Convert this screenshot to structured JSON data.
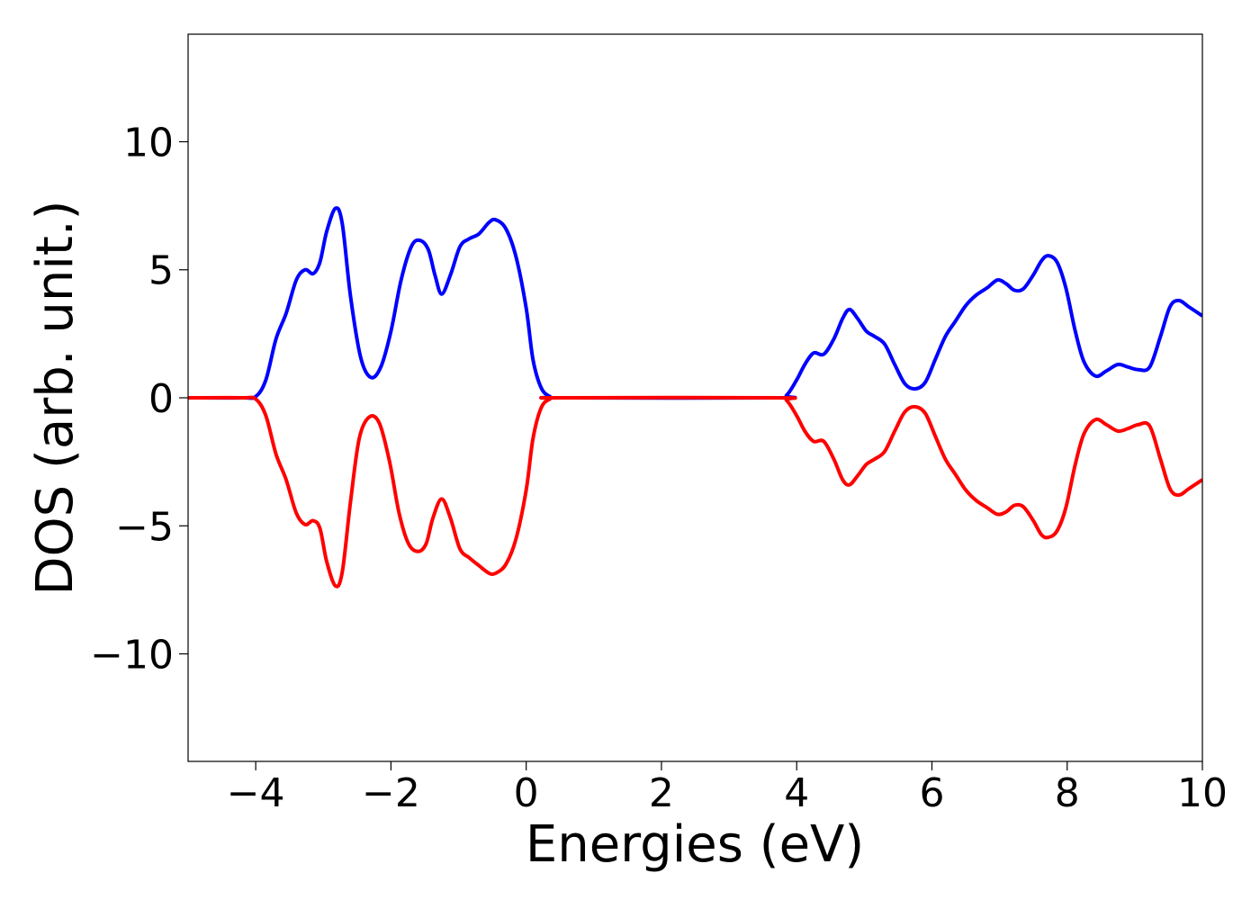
{
  "chart_data": {
    "type": "line",
    "title": "",
    "xlabel": "Energies (eV)",
    "ylabel": "DOS (arb. unit.)",
    "xlim": [
      -5,
      10
    ],
    "ylim": [
      -14.2,
      14.2
    ],
    "grid": false,
    "legend": "none",
    "x_ticks": [
      -4,
      -2,
      0,
      2,
      4,
      6,
      8,
      10
    ],
    "x_tick_labels": [
      "−4",
      "−2",
      "0",
      "2",
      "4",
      "6",
      "8",
      "10"
    ],
    "y_ticks": [
      10,
      5,
      0,
      -5,
      -10
    ],
    "y_tick_labels": [
      "10",
      "5",
      "0",
      "−5",
      "−10"
    ],
    "series": [
      {
        "color": "#0000ff",
        "points": [
          [
            -5.0,
            0.0
          ],
          [
            -4.2,
            0.0
          ],
          [
            -4.0,
            0.05
          ],
          [
            -3.85,
            0.7
          ],
          [
            -3.7,
            2.3
          ],
          [
            -3.55,
            3.3
          ],
          [
            -3.4,
            4.6
          ],
          [
            -3.27,
            5.0
          ],
          [
            -3.15,
            4.85
          ],
          [
            -3.05,
            5.3
          ],
          [
            -2.95,
            6.5
          ],
          [
            -2.82,
            7.4
          ],
          [
            -2.72,
            6.8
          ],
          [
            -2.6,
            4.0
          ],
          [
            -2.45,
            1.6
          ],
          [
            -2.3,
            0.8
          ],
          [
            -2.15,
            1.2
          ],
          [
            -2.0,
            2.6
          ],
          [
            -1.85,
            4.6
          ],
          [
            -1.7,
            5.9
          ],
          [
            -1.58,
            6.15
          ],
          [
            -1.45,
            5.8
          ],
          [
            -1.35,
            4.8
          ],
          [
            -1.25,
            4.05
          ],
          [
            -1.12,
            4.8
          ],
          [
            -0.98,
            5.9
          ],
          [
            -0.85,
            6.2
          ],
          [
            -0.7,
            6.4
          ],
          [
            -0.55,
            6.85
          ],
          [
            -0.45,
            6.95
          ],
          [
            -0.3,
            6.6
          ],
          [
            -0.15,
            5.5
          ],
          [
            0.0,
            3.5
          ],
          [
            0.1,
            1.5
          ],
          [
            0.22,
            0.4
          ],
          [
            0.35,
            0.05
          ],
          [
            0.5,
            0.0
          ],
          [
            3.7,
            0.0
          ],
          [
            3.85,
            0.1
          ],
          [
            4.0,
            0.7
          ],
          [
            4.12,
            1.3
          ],
          [
            4.25,
            1.75
          ],
          [
            4.4,
            1.7
          ],
          [
            4.55,
            2.3
          ],
          [
            4.68,
            3.1
          ],
          [
            4.78,
            3.45
          ],
          [
            4.9,
            3.1
          ],
          [
            5.03,
            2.6
          ],
          [
            5.15,
            2.4
          ],
          [
            5.3,
            2.1
          ],
          [
            5.45,
            1.3
          ],
          [
            5.6,
            0.55
          ],
          [
            5.75,
            0.35
          ],
          [
            5.9,
            0.6
          ],
          [
            6.05,
            1.5
          ],
          [
            6.2,
            2.4
          ],
          [
            6.35,
            3.0
          ],
          [
            6.5,
            3.6
          ],
          [
            6.65,
            4.0
          ],
          [
            6.82,
            4.3
          ],
          [
            6.97,
            4.6
          ],
          [
            7.1,
            4.45
          ],
          [
            7.22,
            4.2
          ],
          [
            7.35,
            4.25
          ],
          [
            7.5,
            4.8
          ],
          [
            7.62,
            5.35
          ],
          [
            7.72,
            5.55
          ],
          [
            7.85,
            5.3
          ],
          [
            7.98,
            4.3
          ],
          [
            8.12,
            2.6
          ],
          [
            8.25,
            1.4
          ],
          [
            8.42,
            0.85
          ],
          [
            8.58,
            1.05
          ],
          [
            8.75,
            1.3
          ],
          [
            8.9,
            1.2
          ],
          [
            9.05,
            1.1
          ],
          [
            9.22,
            1.2
          ],
          [
            9.38,
            2.4
          ],
          [
            9.52,
            3.55
          ],
          [
            9.65,
            3.8
          ],
          [
            9.8,
            3.55
          ],
          [
            10.0,
            3.2
          ]
        ]
      },
      {
        "color": "#ff0000",
        "points": [
          [
            -5.0,
            0.0
          ],
          [
            -4.2,
            0.0
          ],
          [
            -4.0,
            -0.05
          ],
          [
            -3.85,
            -0.7
          ],
          [
            -3.7,
            -2.2
          ],
          [
            -3.55,
            -3.2
          ],
          [
            -3.4,
            -4.5
          ],
          [
            -3.27,
            -4.95
          ],
          [
            -3.15,
            -4.8
          ],
          [
            -3.05,
            -5.1
          ],
          [
            -2.95,
            -6.4
          ],
          [
            -2.82,
            -7.35
          ],
          [
            -2.72,
            -6.8
          ],
          [
            -2.6,
            -4.1
          ],
          [
            -2.47,
            -1.6
          ],
          [
            -2.32,
            -0.75
          ],
          [
            -2.17,
            -1.0
          ],
          [
            -2.02,
            -2.5
          ],
          [
            -1.88,
            -4.5
          ],
          [
            -1.74,
            -5.7
          ],
          [
            -1.6,
            -6.0
          ],
          [
            -1.48,
            -5.7
          ],
          [
            -1.38,
            -4.7
          ],
          [
            -1.25,
            -3.95
          ],
          [
            -1.12,
            -4.7
          ],
          [
            -0.98,
            -5.9
          ],
          [
            -0.84,
            -6.25
          ],
          [
            -0.7,
            -6.55
          ],
          [
            -0.55,
            -6.85
          ],
          [
            -0.45,
            -6.85
          ],
          [
            -0.3,
            -6.5
          ],
          [
            -0.15,
            -5.5
          ],
          [
            0.0,
            -3.6
          ],
          [
            0.1,
            -1.6
          ],
          [
            0.22,
            -0.4
          ],
          [
            0.35,
            -0.05
          ],
          [
            0.5,
            0.0
          ],
          [
            3.7,
            0.0
          ],
          [
            3.85,
            -0.1
          ],
          [
            4.0,
            -0.7
          ],
          [
            4.12,
            -1.3
          ],
          [
            4.25,
            -1.7
          ],
          [
            4.4,
            -1.7
          ],
          [
            4.55,
            -2.4
          ],
          [
            4.68,
            -3.2
          ],
          [
            4.78,
            -3.4
          ],
          [
            4.9,
            -3.05
          ],
          [
            5.03,
            -2.6
          ],
          [
            5.15,
            -2.4
          ],
          [
            5.3,
            -2.1
          ],
          [
            5.45,
            -1.3
          ],
          [
            5.6,
            -0.55
          ],
          [
            5.75,
            -0.35
          ],
          [
            5.9,
            -0.6
          ],
          [
            6.05,
            -1.5
          ],
          [
            6.2,
            -2.4
          ],
          [
            6.35,
            -3.0
          ],
          [
            6.5,
            -3.6
          ],
          [
            6.65,
            -4.0
          ],
          [
            6.82,
            -4.3
          ],
          [
            6.97,
            -4.55
          ],
          [
            7.1,
            -4.45
          ],
          [
            7.22,
            -4.2
          ],
          [
            7.35,
            -4.25
          ],
          [
            7.5,
            -4.8
          ],
          [
            7.62,
            -5.35
          ],
          [
            7.72,
            -5.45
          ],
          [
            7.85,
            -5.2
          ],
          [
            7.98,
            -4.3
          ],
          [
            8.12,
            -2.6
          ],
          [
            8.25,
            -1.4
          ],
          [
            8.42,
            -0.85
          ],
          [
            8.58,
            -1.05
          ],
          [
            8.75,
            -1.3
          ],
          [
            8.9,
            -1.2
          ],
          [
            9.05,
            -1.05
          ],
          [
            9.22,
            -1.1
          ],
          [
            9.38,
            -2.4
          ],
          [
            9.52,
            -3.55
          ],
          [
            9.65,
            -3.8
          ],
          [
            9.8,
            -3.55
          ],
          [
            10.0,
            -3.2
          ]
        ]
      }
    ]
  }
}
